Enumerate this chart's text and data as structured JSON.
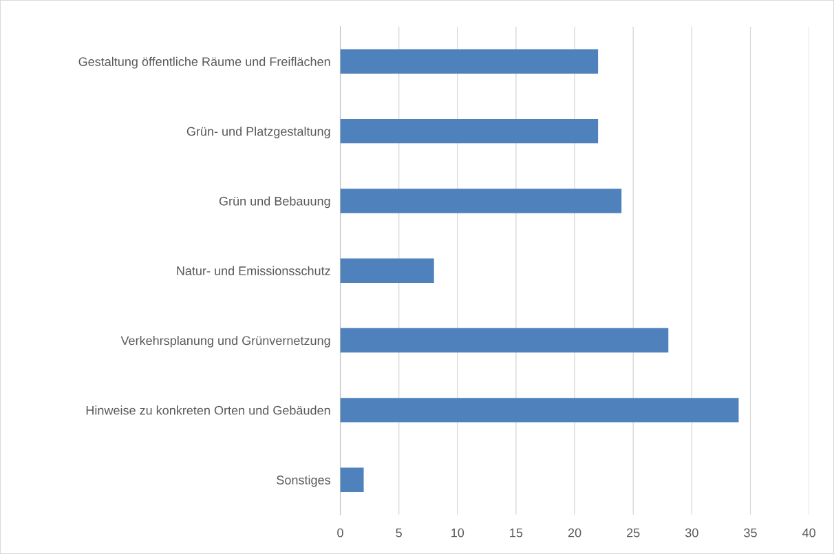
{
  "chart_data": {
    "type": "bar",
    "orientation": "horizontal",
    "categories": [
      "Gestaltung öffentliche Räume und Freiflächen",
      "Grün- und Platzgestaltung",
      "Grün und Bebauung",
      "Natur- und Emissionsschutz",
      "Verkehrsplanung und Grünvernetzung",
      "Hinweise zu konkreten Orten und Gebäuden",
      "Sonstiges"
    ],
    "values": [
      22,
      22,
      24,
      8,
      28,
      34,
      2
    ],
    "color": "#4f81bd",
    "xlim": [
      0,
      40
    ],
    "xticks": [
      0,
      5,
      10,
      15,
      20,
      25,
      30,
      35,
      40
    ],
    "grid": "x",
    "legend": false
  }
}
